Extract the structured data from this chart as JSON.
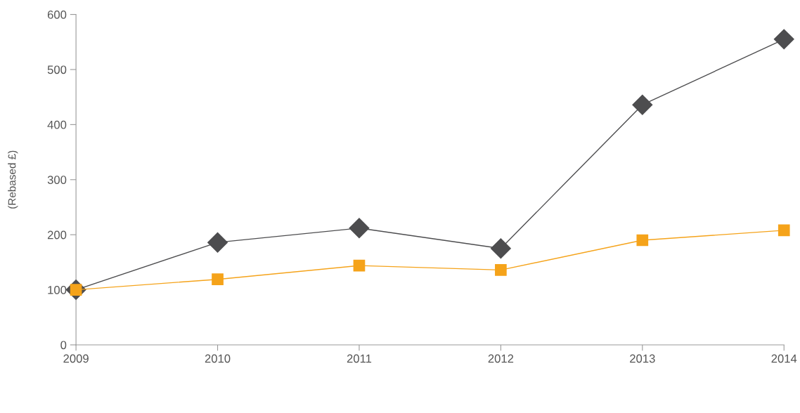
{
  "chart_data": {
    "type": "line",
    "ylabel": "(Rebased £)",
    "categories": [
      "2009",
      "2010",
      "2011",
      "2012",
      "2013",
      "2014"
    ],
    "ylim": [
      0,
      600
    ],
    "yticks": [
      0,
      100,
      200,
      300,
      400,
      500,
      600
    ],
    "grid": false,
    "line_style": "solid",
    "series": [
      {
        "color": "#4d4d4f",
        "marker": "diamond",
        "values": [
          100,
          186,
          212,
          175,
          436,
          555
        ]
      },
      {
        "color": "#f5a31a",
        "marker": "square",
        "values": [
          100,
          119,
          144,
          136,
          190,
          208
        ]
      }
    ]
  }
}
